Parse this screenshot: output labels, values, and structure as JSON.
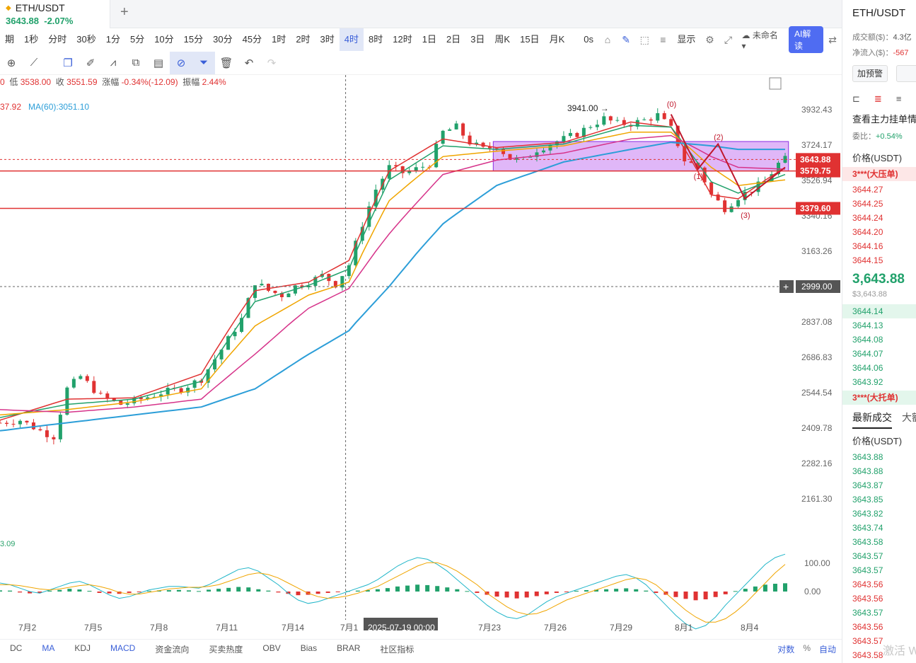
{
  "tab": {
    "symbol": "ETH/USDT",
    "price": "3643.88",
    "change": "-2.07%",
    "add": "+"
  },
  "periods": [
    {
      "label": "期"
    },
    {
      "label": "1秒"
    },
    {
      "label": "分时"
    },
    {
      "label": "30秒"
    },
    {
      "label": "1分"
    },
    {
      "label": "5分"
    },
    {
      "label": "10分"
    },
    {
      "label": "15分"
    },
    {
      "label": "30分"
    },
    {
      "label": "45分"
    },
    {
      "label": "1时"
    },
    {
      "label": "2时"
    },
    {
      "label": "3时"
    },
    {
      "label": "4时",
      "active": true
    },
    {
      "label": "8时"
    },
    {
      "label": "12时"
    },
    {
      "label": "1日"
    },
    {
      "label": "2日"
    },
    {
      "label": "3日"
    },
    {
      "label": "周K"
    },
    {
      "label": "15日"
    },
    {
      "label": "月K"
    }
  ],
  "toolbar_right": {
    "seconds": "0s",
    "display": "显示",
    "layout_name": "未命名",
    "ai": "AI解读"
  },
  "info": {
    "low_label": "低",
    "low": "3538.00",
    "close_label": "收",
    "close": "3551.59",
    "chg_label": "涨幅",
    "chg": "-0.34%(-12.09)",
    "amp_label": "振幅",
    "amp": "2.44%",
    "lead": "0"
  },
  "ma": {
    "a": "37.92",
    "b": "MA(60):3051.10"
  },
  "macd_left": "3.09",
  "indicators": [
    "DC",
    "MA",
    "KDJ",
    "MACD",
    "资金流向",
    "买卖热度",
    "OBV",
    "Bias",
    "BRAR",
    "社区指标"
  ],
  "scale_opts": {
    "log": "对数",
    "pct": "%",
    "auto": "自动"
  },
  "chart_data": {
    "type": "candlestick",
    "symbol": "ETH/USDT",
    "interval": "4时",
    "y_ticks": [
      3932.43,
      3724.17,
      3526.94,
      3340.16,
      3163.26,
      2999.0,
      2837.08,
      2686.83,
      2544.54,
      2409.78,
      2282.16,
      2161.3
    ],
    "x_ticks": [
      "7月2",
      "7月5",
      "7月8",
      "7月11",
      "7月14",
      "7月1",
      "7月23",
      "7月26",
      "7月29",
      "8月1",
      "8月4"
    ],
    "crosshair": {
      "x_label": "2025-07-19 00:00",
      "y_label": "2999.00"
    },
    "labels": {
      "current": "3643.88",
      "line1": "3579.75",
      "line2": "3379.60",
      "peak": "3941.00 →"
    },
    "horizontal_lines": [
      3579.75,
      3379.6
    ],
    "range_box": [
      3579.75,
      3745
    ],
    "wave_labels": [
      "(0)",
      "(1)",
      "(2)",
      "(3)"
    ],
    "price_path": [
      [
        0,
        2430
      ],
      [
        3,
        2440
      ],
      [
        6,
        2400
      ],
      [
        8,
        2380
      ],
      [
        10,
        2560
      ],
      [
        12,
        2610
      ],
      [
        15,
        2530
      ],
      [
        18,
        2500
      ],
      [
        21,
        2520
      ],
      [
        24,
        2545
      ],
      [
        27,
        2560
      ],
      [
        30,
        2600
      ],
      [
        33,
        2720
      ],
      [
        36,
        2850
      ],
      [
        38,
        3020
      ],
      [
        40,
        2980
      ],
      [
        42,
        2960
      ],
      [
        44,
        3000
      ],
      [
        46,
        3020
      ],
      [
        48,
        3050
      ],
      [
        50,
        3010
      ],
      [
        52,
        3100
      ],
      [
        54,
        3300
      ],
      [
        56,
        3480
      ],
      [
        58,
        3600
      ],
      [
        60,
        3570
      ],
      [
        62,
        3590
      ],
      [
        64,
        3620
      ],
      [
        66,
        3800
      ],
      [
        68,
        3830
      ],
      [
        70,
        3740
      ],
      [
        72,
        3700
      ],
      [
        74,
        3720
      ],
      [
        76,
        3650
      ],
      [
        78,
        3640
      ],
      [
        80,
        3700
      ],
      [
        82,
        3730
      ],
      [
        84,
        3760
      ],
      [
        86,
        3790
      ],
      [
        88,
        3840
      ],
      [
        90,
        3880
      ],
      [
        92,
        3850
      ],
      [
        94,
        3850
      ],
      [
        96,
        3870
      ],
      [
        98,
        3900
      ],
      [
        100,
        3820
      ],
      [
        102,
        3640
      ],
      [
        104,
        3600
      ],
      [
        106,
        3450
      ],
      [
        108,
        3380
      ],
      [
        110,
        3440
      ],
      [
        112,
        3480
      ],
      [
        114,
        3520
      ],
      [
        116,
        3620
      ],
      [
        117,
        3643.88
      ]
    ],
    "ma_lines": [
      {
        "name": "MA5",
        "color": "#e03232",
        "path": [
          [
            0,
            2440
          ],
          [
            10,
            2520
          ],
          [
            20,
            2525
          ],
          [
            30,
            2620
          ],
          [
            38,
            2980
          ],
          [
            46,
            3020
          ],
          [
            52,
            3120
          ],
          [
            58,
            3580
          ],
          [
            66,
            3760
          ],
          [
            74,
            3710
          ],
          [
            84,
            3740
          ],
          [
            94,
            3860
          ],
          [
            100,
            3830
          ],
          [
            106,
            3450
          ],
          [
            110,
            3430
          ],
          [
            117,
            3600
          ]
        ]
      },
      {
        "name": "MA10",
        "color": "#21a16b",
        "path": [
          [
            0,
            2450
          ],
          [
            10,
            2500
          ],
          [
            20,
            2520
          ],
          [
            30,
            2590
          ],
          [
            38,
            2930
          ],
          [
            46,
            3005
          ],
          [
            52,
            3080
          ],
          [
            58,
            3530
          ],
          [
            66,
            3720
          ],
          [
            74,
            3700
          ],
          [
            84,
            3730
          ],
          [
            94,
            3840
          ],
          [
            100,
            3830
          ],
          [
            106,
            3520
          ],
          [
            110,
            3460
          ],
          [
            117,
            3560
          ]
        ]
      },
      {
        "name": "MA20",
        "color": "#f0a500",
        "path": [
          [
            0,
            2460
          ],
          [
            10,
            2480
          ],
          [
            20,
            2510
          ],
          [
            30,
            2560
          ],
          [
            38,
            2820
          ],
          [
            46,
            2960
          ],
          [
            52,
            3020
          ],
          [
            58,
            3420
          ],
          [
            66,
            3660
          ],
          [
            74,
            3690
          ],
          [
            84,
            3720
          ],
          [
            94,
            3800
          ],
          [
            100,
            3800
          ],
          [
            106,
            3600
          ],
          [
            110,
            3500
          ],
          [
            117,
            3530
          ]
        ]
      },
      {
        "name": "MA30",
        "color": "#d6338a",
        "path": [
          [
            0,
            2480
          ],
          [
            10,
            2470
          ],
          [
            20,
            2490
          ],
          [
            30,
            2520
          ],
          [
            38,
            2700
          ],
          [
            46,
            2900
          ],
          [
            52,
            2990
          ],
          [
            58,
            3250
          ],
          [
            66,
            3560
          ],
          [
            74,
            3640
          ],
          [
            84,
            3680
          ],
          [
            94,
            3760
          ],
          [
            100,
            3780
          ],
          [
            106,
            3660
          ],
          [
            110,
            3600
          ],
          [
            117,
            3590
          ]
        ]
      },
      {
        "name": "MA60",
        "color": "#2c9ed8",
        "path": [
          [
            0,
            2400
          ],
          [
            10,
            2430
          ],
          [
            20,
            2460
          ],
          [
            30,
            2490
          ],
          [
            38,
            2560
          ],
          [
            46,
            2700
          ],
          [
            52,
            2800
          ],
          [
            58,
            3000
          ],
          [
            66,
            3300
          ],
          [
            74,
            3500
          ],
          [
            84,
            3630
          ],
          [
            94,
            3700
          ],
          [
            100,
            3740
          ],
          [
            106,
            3720
          ],
          [
            110,
            3700
          ],
          [
            117,
            3700
          ]
        ]
      }
    ],
    "macd": {
      "y_ticks": [
        100.0,
        0.0
      ],
      "histogram": [
        5,
        4,
        -4,
        -8,
        -6,
        4,
        7,
        12,
        9,
        3,
        -6,
        -8,
        -10,
        -6,
        -2,
        3,
        5,
        6,
        7,
        5,
        2,
        8,
        12,
        16,
        20,
        18,
        10,
        4,
        -4,
        -10,
        -16,
        -14,
        -10,
        -6,
        -3,
        2,
        4,
        6,
        10,
        15,
        22,
        26,
        30,
        28,
        24,
        18,
        10,
        2,
        -6,
        -14,
        -22,
        -26,
        -30,
        -26,
        -20,
        -12,
        -6,
        -2,
        3,
        6,
        8,
        10,
        12,
        14,
        10,
        4,
        -6,
        -14,
        -24,
        -32,
        -38,
        -34,
        -24,
        -12,
        2,
        12,
        22,
        30,
        34,
        36
      ],
      "dif": [
        10,
        8,
        4,
        0,
        -2,
        2,
        6,
        10,
        12,
        8,
        2,
        -4,
        -8,
        -6,
        -2,
        2,
        4,
        6,
        6,
        5,
        4,
        8,
        14,
        20,
        26,
        28,
        24,
        16,
        8,
        -2,
        -10,
        -14,
        -12,
        -8,
        -4,
        0,
        4,
        8,
        14,
        22,
        30,
        36,
        40,
        38,
        32,
        24,
        14,
        4,
        -6,
        -16,
        -24,
        -30,
        -32,
        -28,
        -20,
        -12,
        -6,
        -2,
        2,
        6,
        10,
        14,
        18,
        20,
        16,
        8,
        -4,
        -16,
        -28,
        -38,
        -44,
        -40,
        -30,
        -16,
        -4,
        8,
        20,
        32,
        40,
        44
      ],
      "dea": [
        8,
        8,
        7,
        5,
        3,
        2,
        3,
        5,
        7,
        8,
        6,
        3,
        -1,
        -3,
        -3,
        -1,
        1,
        3,
        4,
        5,
        5,
        6,
        8,
        12,
        16,
        20,
        22,
        20,
        16,
        10,
        4,
        -2,
        -6,
        -8,
        -7,
        -5,
        -2,
        2,
        6,
        12,
        18,
        24,
        30,
        34,
        34,
        30,
        24,
        16,
        8,
        -2,
        -10,
        -18,
        -24,
        -27,
        -26,
        -22,
        -16,
        -10,
        -6,
        -2,
        2,
        6,
        10,
        14,
        16,
        14,
        8,
        -2,
        -12,
        -22,
        -30,
        -36,
        -36,
        -32,
        -24,
        -14,
        -2,
        10,
        22,
        32
      ]
    }
  },
  "right_panel": {
    "title": "ETH/USDT",
    "turnover_label": "成交额($)：",
    "turnover": "4.3亿",
    "netflow_label": "净流入($)：",
    "netflow": "-567",
    "alert_btn": "加预警",
    "main_orders": "查看主力挂单情",
    "ratio_label": "委比：",
    "ratio": "+0.54%",
    "price_header": "价格(USDT)",
    "big_ask": "3***(大压单)",
    "asks": [
      "3644.27",
      "3644.25",
      "3644.24",
      "3644.20",
      "3644.16",
      "3644.15"
    ],
    "last": "3,643.88",
    "last_sub": "$3,643.88",
    "bids": [
      "3644.14",
      "3644.13",
      "3644.08",
      "3644.07",
      "3644.06",
      "3643.92"
    ],
    "big_bid": "3***(大托单)",
    "tab_trades": "最新成交",
    "tab_other": "大额",
    "trade_header": "价格(USDT)",
    "trades": [
      {
        "p": "3643.88",
        "c": "green"
      },
      {
        "p": "3643.88",
        "c": "green"
      },
      {
        "p": "3643.87",
        "c": "green"
      },
      {
        "p": "3643.85",
        "c": "green"
      },
      {
        "p": "3643.82",
        "c": "green"
      },
      {
        "p": "3643.74",
        "c": "green"
      },
      {
        "p": "3643.58",
        "c": "green"
      },
      {
        "p": "3643.57",
        "c": "green"
      },
      {
        "p": "3643.57",
        "c": "green"
      },
      {
        "p": "3643.56",
        "c": "red"
      },
      {
        "p": "3643.56",
        "c": "red"
      },
      {
        "p": "3643.57",
        "c": "green"
      },
      {
        "p": "3643.56",
        "c": "red"
      },
      {
        "p": "3643.57",
        "c": "red"
      },
      {
        "p": "3643.58",
        "c": "red"
      }
    ],
    "watermark": "激活 W"
  }
}
